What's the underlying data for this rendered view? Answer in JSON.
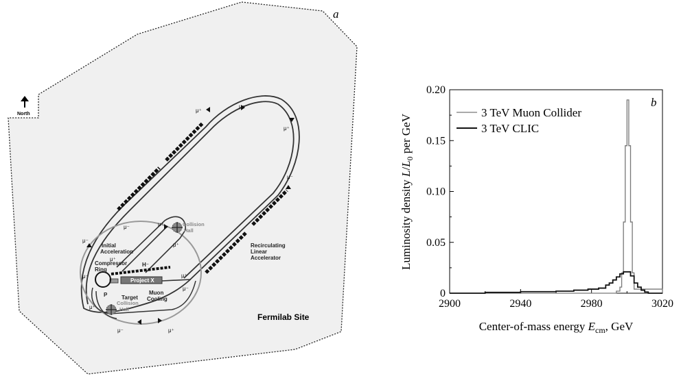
{
  "panel_a": {
    "letter": "a",
    "north_label": "North",
    "site_label": "Fermilab Site",
    "labels": {
      "collision_hall_top_1": "Collision",
      "collision_hall_top_2": "Hall",
      "collision_hall_bottom_1": "Collision",
      "collision_hall_bottom_2": "Hall",
      "initial_acc_1": "Initial",
      "initial_acc_2": "Acceleration",
      "recirc_1": "Recirculating",
      "recirc_2": "Linear",
      "recirc_3": "Accelerator",
      "compressor_1": "Compressor",
      "compressor_2": "Ring",
      "h_minus": "H⁻",
      "project_x": "Project X",
      "p": "P",
      "target": "Target",
      "muon_1": "Muon",
      "muon_2": "Cooling"
    },
    "particle_labels": {
      "mu_plus": "μ⁺",
      "mu_minus": "μ⁻"
    }
  },
  "panel_b": {
    "letter": "b",
    "legend": [
      "3 TeV Muon Collider",
      "3 TeV CLIC"
    ]
  },
  "chart_data": {
    "type": "line",
    "xlabel": "Center-of-mass energy E_cm, GeV",
    "ylabel": "Luminosity density L/L_0 per GeV",
    "xlim": [
      2900,
      3020
    ],
    "ylim": [
      0,
      0.2
    ],
    "x_ticks": [
      "2900",
      "2940",
      "2980",
      "3020"
    ],
    "y_ticks": [
      "0",
      "0.05",
      "0.10",
      "0.15",
      "0.20"
    ],
    "legend_position": "top-left",
    "grid": false,
    "series": [
      {
        "name": "3 TeV Muon Collider",
        "color": "#777777",
        "x": [
          2900,
          2990,
          2994,
          2996,
          2997,
          2998,
          2999,
          3000,
          3001,
          3002,
          3003,
          3004,
          3020
        ],
        "y": [
          0,
          0,
          0.002,
          0.006,
          0.02,
          0.07,
          0.145,
          0.19,
          0.145,
          0.07,
          0.02,
          0.004,
          0
        ]
      },
      {
        "name": "3 TeV CLIC",
        "color": "#111111",
        "x": [
          2900,
          2920,
          2940,
          2960,
          2970,
          2978,
          2984,
          2988,
          2990,
          2992,
          2994,
          2996,
          2998,
          3000,
          3002,
          3004,
          3006,
          3008,
          3010,
          3012,
          3020
        ],
        "y": [
          0,
          0.0008,
          0.0015,
          0.002,
          0.003,
          0.004,
          0.005,
          0.008,
          0.01,
          0.013,
          0.016,
          0.019,
          0.021,
          0.021,
          0.017,
          0.01,
          0.006,
          0.003,
          0.0012,
          0,
          0
        ]
      }
    ]
  }
}
